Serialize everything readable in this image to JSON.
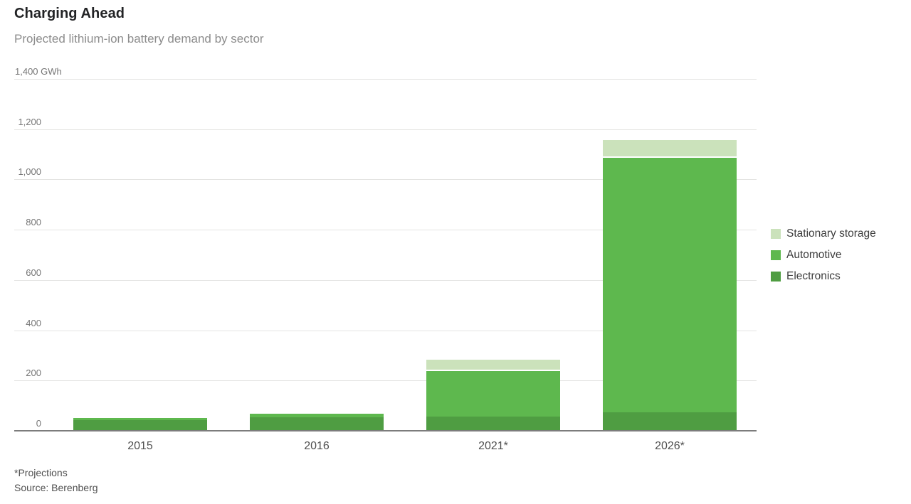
{
  "chart_data": {
    "type": "bar",
    "stacked": true,
    "title": "Charging Ahead",
    "subtitle": "Projected lithium-ion battery demand by sector",
    "unit": "GWh",
    "categories": [
      "2015",
      "2016",
      "2021*",
      "2026*"
    ],
    "series": [
      {
        "name": "Electronics",
        "color": "#4f9d42",
        "values": [
          40,
          50,
          55,
          70
        ]
      },
      {
        "name": "Automotive",
        "color": "#5eb84e",
        "values": [
          15,
          20,
          185,
          1020
        ]
      },
      {
        "name": "Stationary storage",
        "color": "#cbe2bb",
        "values": [
          0,
          0,
          45,
          70
        ]
      }
    ],
    "totals": [
      55,
      70,
      285,
      1160
    ],
    "ylim": [
      0,
      1400
    ],
    "ytick_interval": 200,
    "yticks": [
      {
        "value": 0,
        "label": "0"
      },
      {
        "value": 200,
        "label": "200"
      },
      {
        "value": 400,
        "label": "400"
      },
      {
        "value": 600,
        "label": "600"
      },
      {
        "value": 800,
        "label": "800"
      },
      {
        "value": 1000,
        "label": "1,000"
      },
      {
        "value": 1200,
        "label": "1,200"
      },
      {
        "value": 1400,
        "label": "1,400 GWh"
      }
    ],
    "grid": true,
    "legend_position": "right",
    "legend_order": [
      "Stationary storage",
      "Automotive",
      "Electronics"
    ],
    "note": "*Projections",
    "source": "Source: Berenberg"
  }
}
